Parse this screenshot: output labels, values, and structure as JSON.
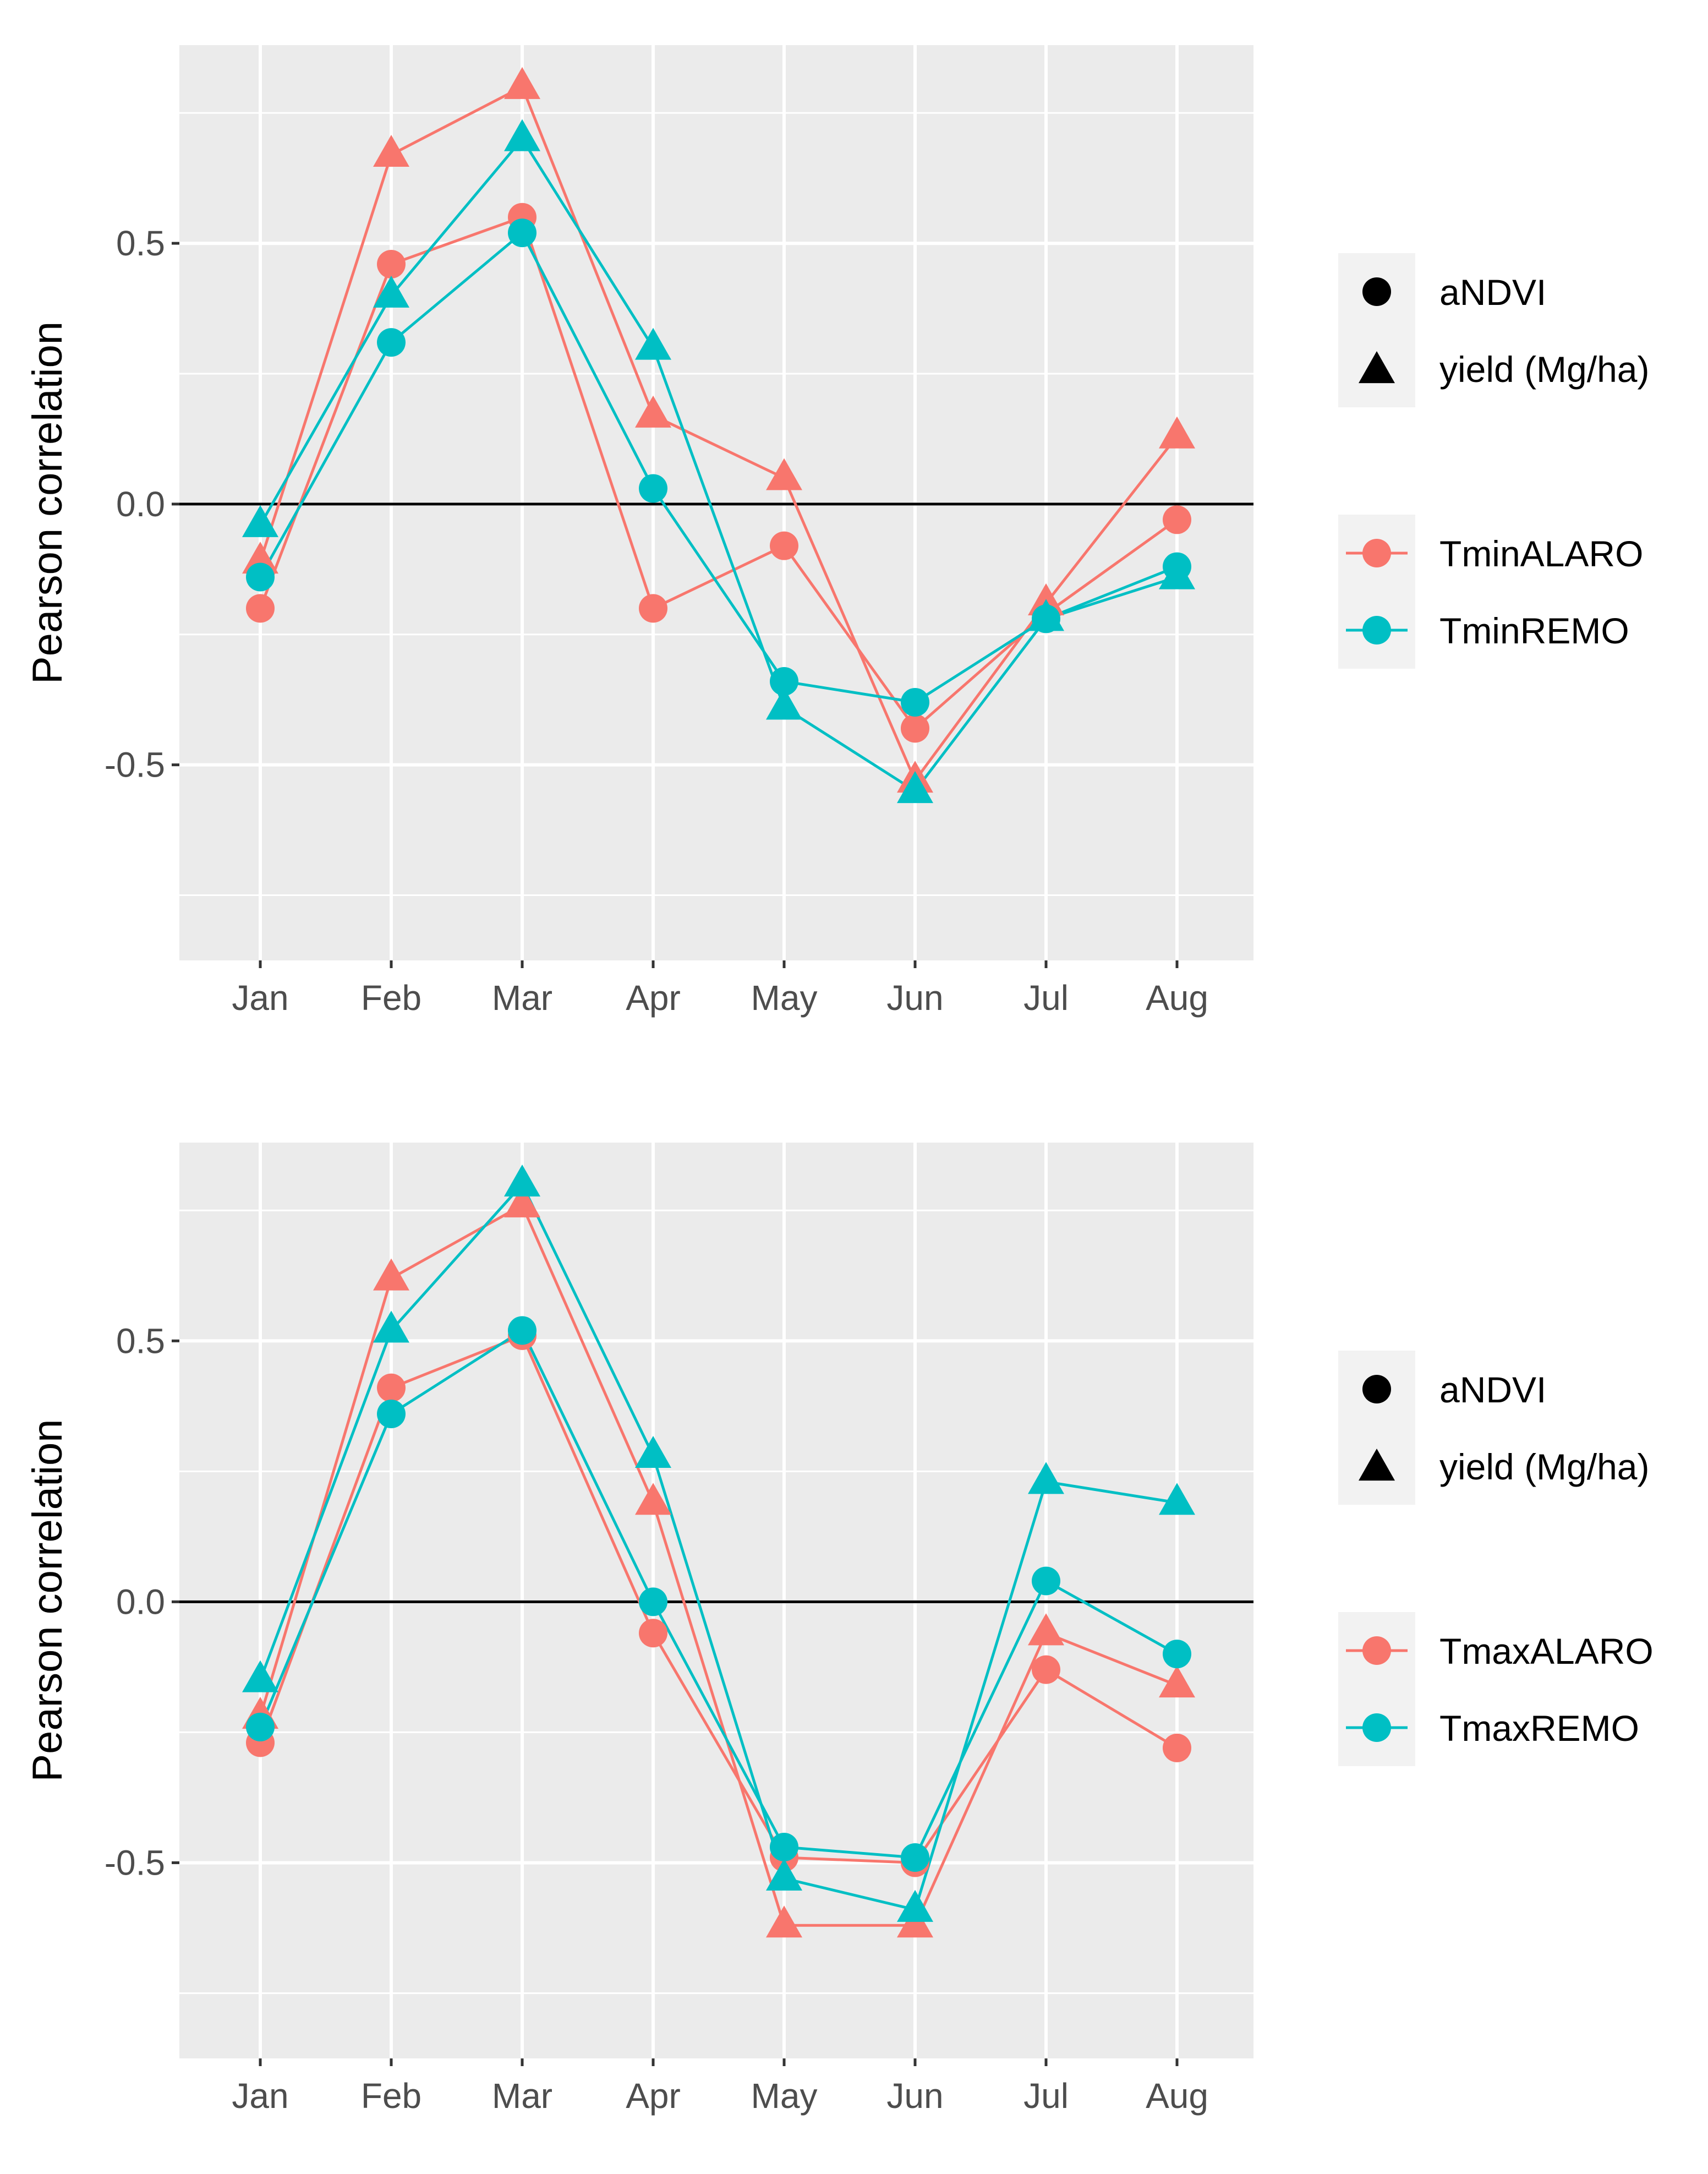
{
  "chart_data": [
    {
      "type": "line",
      "title": "",
      "xlabel": "",
      "ylabel": "Pearson correlation",
      "categories": [
        "Jan",
        "Feb",
        "Mar",
        "Apr",
        "May",
        "Jun",
        "Jul",
        "Aug"
      ],
      "ylim": [
        -0.875,
        0.88
      ],
      "yticks": [
        -0.5,
        0.0,
        0.5
      ],
      "ytick_labels": [
        "-0.5",
        "0.0",
        "0.5"
      ],
      "hline": 0,
      "series": [
        {
          "name": "TminALARO aNDVI",
          "variable": "TminALARO",
          "metric": "aNDVI",
          "shape": "circle",
          "color": "#F8766D",
          "values": [
            -0.2,
            0.46,
            0.55,
            -0.2,
            -0.08,
            -0.43,
            -0.21,
            -0.03
          ]
        },
        {
          "name": "TminALARO yield (Mg/ha)",
          "variable": "TminALARO",
          "metric": "yield (Mg/ha)",
          "shape": "triangle",
          "color": "#F8766D",
          "values": [
            -0.11,
            0.67,
            0.8,
            0.17,
            0.05,
            -0.53,
            -0.19,
            0.13
          ]
        },
        {
          "name": "TminREMO aNDVI",
          "variable": "TminREMO",
          "metric": "aNDVI",
          "shape": "circle",
          "color": "#00BFC4",
          "values": [
            -0.14,
            0.31,
            0.52,
            0.03,
            -0.34,
            -0.38,
            -0.22,
            -0.12
          ]
        },
        {
          "name": "TminREMO yield (Mg/ha)",
          "variable": "TminREMO",
          "metric": "yield (Mg/ha)",
          "shape": "triangle",
          "color": "#00BFC4",
          "values": [
            -0.04,
            0.4,
            0.7,
            0.3,
            -0.39,
            -0.55,
            -0.22,
            -0.14
          ]
        }
      ],
      "legend": {
        "shape_entries": [
          {
            "shape": "circle",
            "label": "aNDVI"
          },
          {
            "shape": "triangle",
            "label": "yield (Mg/ha)"
          }
        ],
        "color_entries": [
          {
            "color": "#F8766D",
            "label": "TminALARO"
          },
          {
            "color": "#00BFC4",
            "label": "TminREMO"
          }
        ],
        "position": "right"
      },
      "grid": true
    },
    {
      "type": "line",
      "title": "",
      "xlabel": "",
      "ylabel": "Pearson correlation",
      "categories": [
        "Jan",
        "Feb",
        "Mar",
        "Apr",
        "May",
        "Jun",
        "Jul",
        "Aug"
      ],
      "ylim": [
        -0.875,
        0.88
      ],
      "yticks": [
        -0.5,
        0.0,
        0.5
      ],
      "ytick_labels": [
        "-0.5",
        "0.0",
        "0.5"
      ],
      "hline": 0,
      "series": [
        {
          "name": "TmaxALARO aNDVI",
          "variable": "TmaxALARO",
          "metric": "aNDVI",
          "shape": "circle",
          "color": "#F8766D",
          "values": [
            -0.27,
            0.41,
            0.51,
            -0.06,
            -0.49,
            -0.5,
            -0.13,
            -0.28
          ]
        },
        {
          "name": "TmaxALARO yield (Mg/ha)",
          "variable": "TmaxALARO",
          "metric": "yield (Mg/ha)",
          "shape": "triangle",
          "color": "#F8766D",
          "values": [
            -0.22,
            0.62,
            0.76,
            0.19,
            -0.62,
            -0.62,
            -0.06,
            -0.16
          ]
        },
        {
          "name": "TmaxREMO aNDVI",
          "variable": "TmaxREMO",
          "metric": "aNDVI",
          "shape": "circle",
          "color": "#00BFC4",
          "values": [
            -0.24,
            0.36,
            0.52,
            0.0,
            -0.47,
            -0.49,
            0.04,
            -0.1
          ]
        },
        {
          "name": "TmaxREMO yield (Mg/ha)",
          "variable": "TmaxREMO",
          "metric": "yield (Mg/ha)",
          "shape": "triangle",
          "color": "#00BFC4",
          "values": [
            -0.15,
            0.52,
            0.8,
            0.28,
            -0.53,
            -0.59,
            0.23,
            0.19
          ]
        }
      ],
      "legend": {
        "shape_entries": [
          {
            "shape": "circle",
            "label": "aNDVI"
          },
          {
            "shape": "triangle",
            "label": "yield (Mg/ha)"
          }
        ],
        "color_entries": [
          {
            "color": "#F8766D",
            "label": "TmaxALARO"
          },
          {
            "color": "#00BFC4",
            "label": "TmaxREMO"
          }
        ],
        "position": "right"
      },
      "grid": true
    }
  ]
}
